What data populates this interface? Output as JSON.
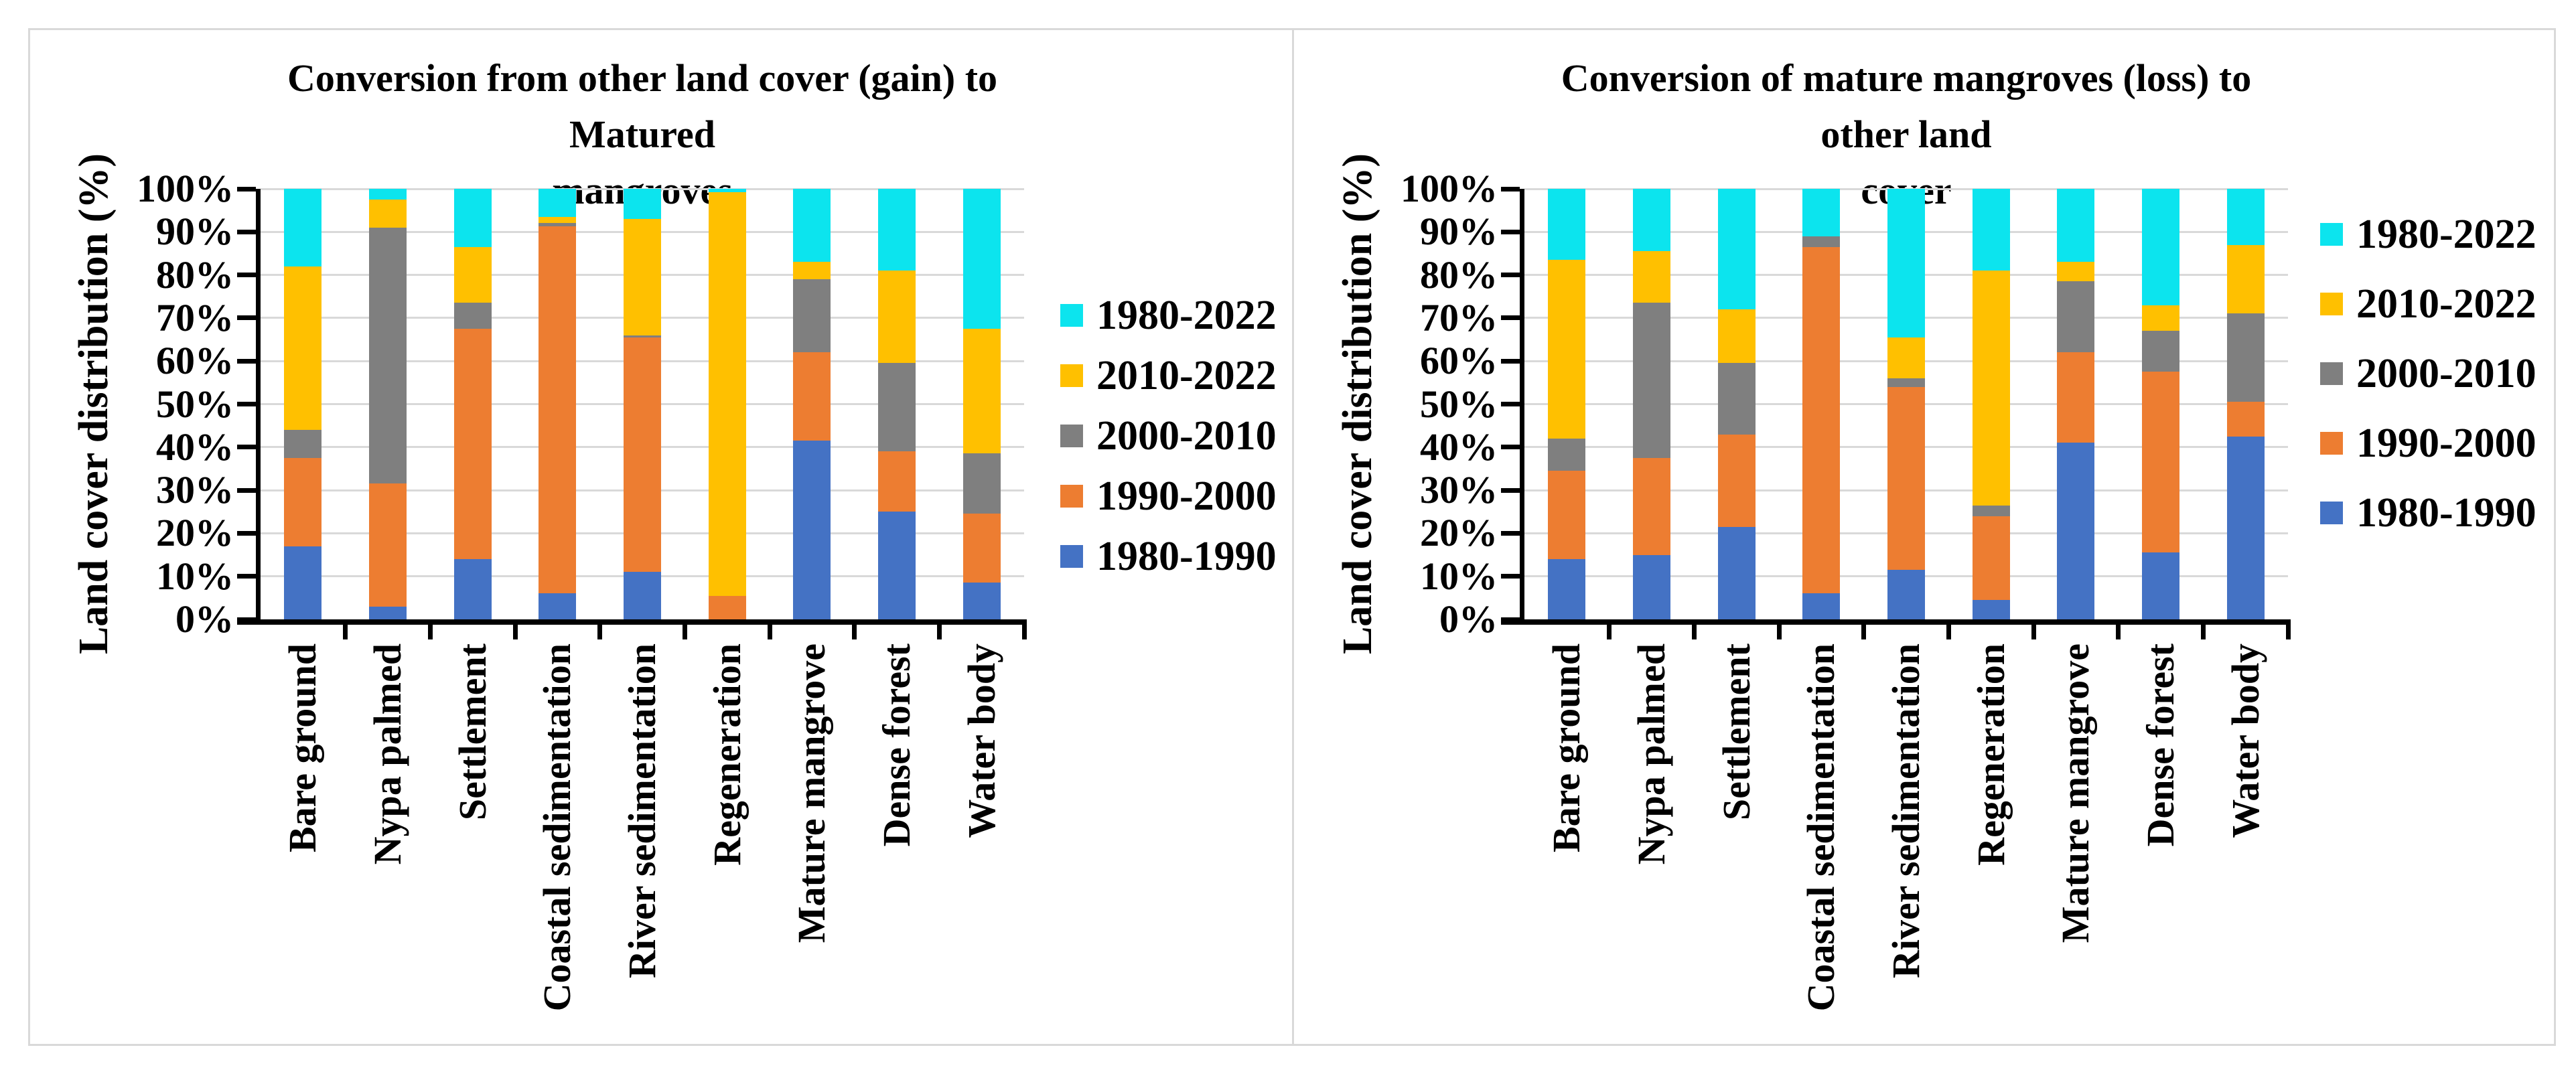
{
  "figure": {
    "background": "#ffffff",
    "border_color": "#d9d9d9"
  },
  "axis": {
    "tick_labels": [
      "0%",
      "10%",
      "20%",
      "30%",
      "40%",
      "50%",
      "60%",
      "70%",
      "80%",
      "90%",
      "100%"
    ],
    "gridline_color": "#d9d9d9",
    "axis_color": "#000000"
  },
  "series_colors": {
    "1980-1990": "#4472C4",
    "1990-2000": "#ED7D31",
    "2000-2010": "#7F7F7F",
    "2010-2022": "#FFC000",
    "1980-2022": "#0CE4EE"
  },
  "chart_data": [
    {
      "type": "bar",
      "stacked": true,
      "units": "percent",
      "title": "Conversion from other land cover (gain) to Matured mangroves",
      "title_lines": [
        "Conversion from other land cover (gain) to Matured",
        "mangroves"
      ],
      "ylabel": "Land cover distribution (%)",
      "xlabel": "",
      "ylim": [
        0,
        100
      ],
      "grid": true,
      "legend_position": "right",
      "categories": [
        "Bare ground",
        "Nypa palmed",
        "Settlement",
        "Coastal sedimentation",
        "River sedimentation",
        "Regeneration",
        "Mature mangrove",
        "Dense forest",
        "Water body"
      ],
      "series": [
        {
          "name": "1980-1990",
          "color": "#4472C4",
          "values": [
            17,
            3,
            14,
            6,
            11,
            0,
            41.5,
            25,
            8.5
          ]
        },
        {
          "name": "1990-2000",
          "color": "#ED7D31",
          "values": [
            20.5,
            28.5,
            53.5,
            85.3,
            54.5,
            5.5,
            20.5,
            14,
            16
          ]
        },
        {
          "name": "2000-2010",
          "color": "#7F7F7F",
          "values": [
            6.5,
            59.5,
            6,
            0.7,
            0.5,
            0,
            17,
            20.5,
            14
          ]
        },
        {
          "name": "2010-2022",
          "color": "#FFC000",
          "values": [
            38,
            6.5,
            13,
            1.5,
            27,
            93.8,
            4,
            21.5,
            29
          ]
        },
        {
          "name": "1980-2022",
          "color": "#0CE4EE",
          "values": [
            18,
            2.5,
            13.5,
            6.5,
            7,
            0.7,
            17,
            19,
            32.5
          ]
        }
      ]
    },
    {
      "type": "bar",
      "stacked": true,
      "units": "percent",
      "title": "Conversion of mature mangroves  (loss) to other land cover",
      "title_lines": [
        "Conversion of mature mangroves  (loss) to other land",
        "cover"
      ],
      "ylabel": "Land cover distribution (%)",
      "xlabel": "",
      "ylim": [
        0,
        100
      ],
      "grid": true,
      "legend_position": "right",
      "categories": [
        "Bare ground",
        "Nypa palmed",
        "Settlement",
        "Coastal sedimentation",
        "River sedimentation",
        "Regeneration",
        "Mature mangrove",
        "Dense forest",
        "Water body"
      ],
      "series": [
        {
          "name": "1980-1990",
          "color": "#4472C4",
          "values": [
            14,
            15,
            21.5,
            6,
            11.5,
            4.5,
            41,
            15.5,
            42.5
          ]
        },
        {
          "name": "1990-2000",
          "color": "#ED7D31",
          "values": [
            20.5,
            22.5,
            21.5,
            80.5,
            42.5,
            19.5,
            21,
            42,
            8
          ]
        },
        {
          "name": "2000-2010",
          "color": "#7F7F7F",
          "values": [
            7.5,
            36,
            16.5,
            2.5,
            2,
            2.5,
            16.5,
            9.5,
            20.5
          ]
        },
        {
          "name": "2010-2022",
          "color": "#FFC000",
          "values": [
            41.5,
            12,
            12.5,
            0,
            9.5,
            54.5,
            4.5,
            6,
            16
          ]
        },
        {
          "name": "1980-2022",
          "color": "#0CE4EE",
          "values": [
            16.5,
            14.5,
            28,
            11,
            34.5,
            19,
            17,
            27,
            13
          ]
        }
      ]
    }
  ]
}
